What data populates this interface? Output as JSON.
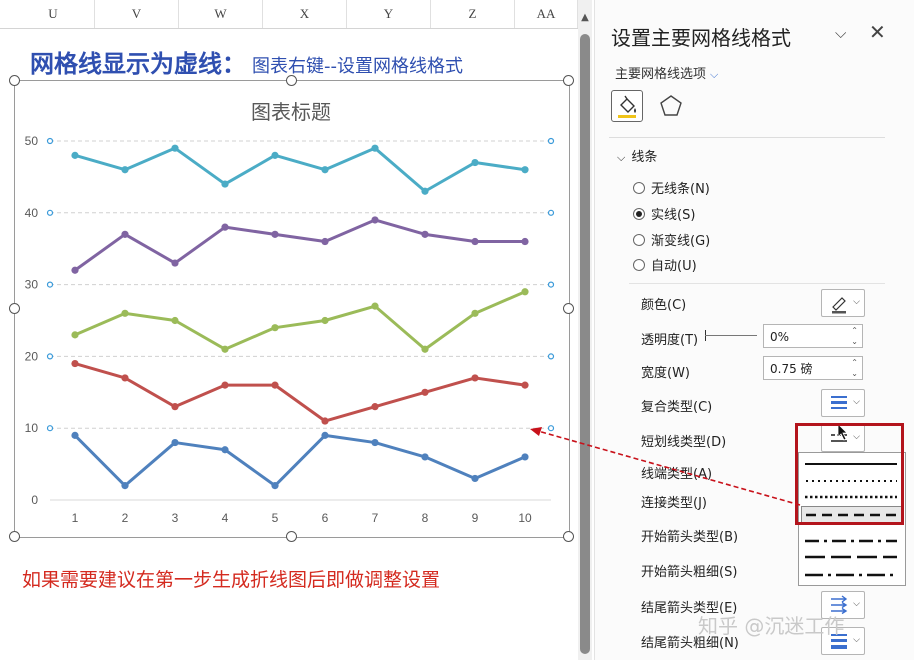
{
  "sheet": {
    "columns": [
      "U",
      "V",
      "W",
      "X",
      "Y",
      "Z",
      "AA"
    ],
    "heading_main": "网格线显示为虚线：",
    "heading_sub": "图表右键--设置网格线格式",
    "note": "如果需要建议在第一步生成折线图后即做调整设置"
  },
  "chart_data": {
    "type": "line",
    "title": "图表标题",
    "x": [
      1,
      2,
      3,
      4,
      5,
      6,
      7,
      8,
      9,
      10
    ],
    "ylim": [
      0,
      50
    ],
    "yticks": [
      0,
      10,
      20,
      30,
      40,
      50
    ],
    "grid": "dashed horizontal",
    "series": [
      {
        "color": "#4bacc6",
        "values": [
          48,
          46,
          49,
          44,
          48,
          46,
          49,
          43,
          47,
          46
        ]
      },
      {
        "color": "#8064a2",
        "values": [
          32,
          37,
          33,
          38,
          37,
          36,
          39,
          37,
          36,
          36
        ]
      },
      {
        "color": "#9bbb59",
        "values": [
          23,
          26,
          25,
          21,
          24,
          25,
          27,
          21,
          26,
          29
        ]
      },
      {
        "color": "#c0504d",
        "values": [
          19,
          17,
          13,
          16,
          16,
          11,
          13,
          15,
          17,
          16
        ]
      },
      {
        "color": "#4f81bd",
        "values": [
          9,
          2,
          8,
          7,
          2,
          9,
          8,
          6,
          3,
          6
        ]
      }
    ]
  },
  "pane": {
    "title": "设置主要网格线格式",
    "options_label": "主要网格线选项",
    "section_line": "线条",
    "radios": [
      {
        "label": "无线条(N)",
        "selected": false
      },
      {
        "label": "实线(S)",
        "selected": true
      },
      {
        "label": "渐变线(G)",
        "selected": false
      },
      {
        "label": "自动(U)",
        "selected": false
      }
    ],
    "props": {
      "color": "颜色(C)",
      "transparency": "透明度(T)",
      "transparency_value": "0%",
      "width": "宽度(W)",
      "width_value": "0.75 磅",
      "compound": "复合类型(C)",
      "dash": "短划线类型(D)",
      "cap": "线端类型(A)",
      "join": "连接类型(J)",
      "begin_arrow_type": "开始箭头类型(B)",
      "begin_arrow_size": "开始箭头粗细(S)",
      "end_arrow_type": "结尾箭头类型(E)",
      "end_arrow_size": "结尾箭头粗细(N)"
    },
    "dash_options": [
      "solid",
      "round-dot",
      "square-dot",
      "dash",
      "dash-dot",
      "long-dash",
      "long-dash-dot"
    ],
    "selected_dash": "dash",
    "accent": "#3b6fcf",
    "highlight": "#b3141c"
  },
  "watermark": "知乎 @沉迷工作"
}
